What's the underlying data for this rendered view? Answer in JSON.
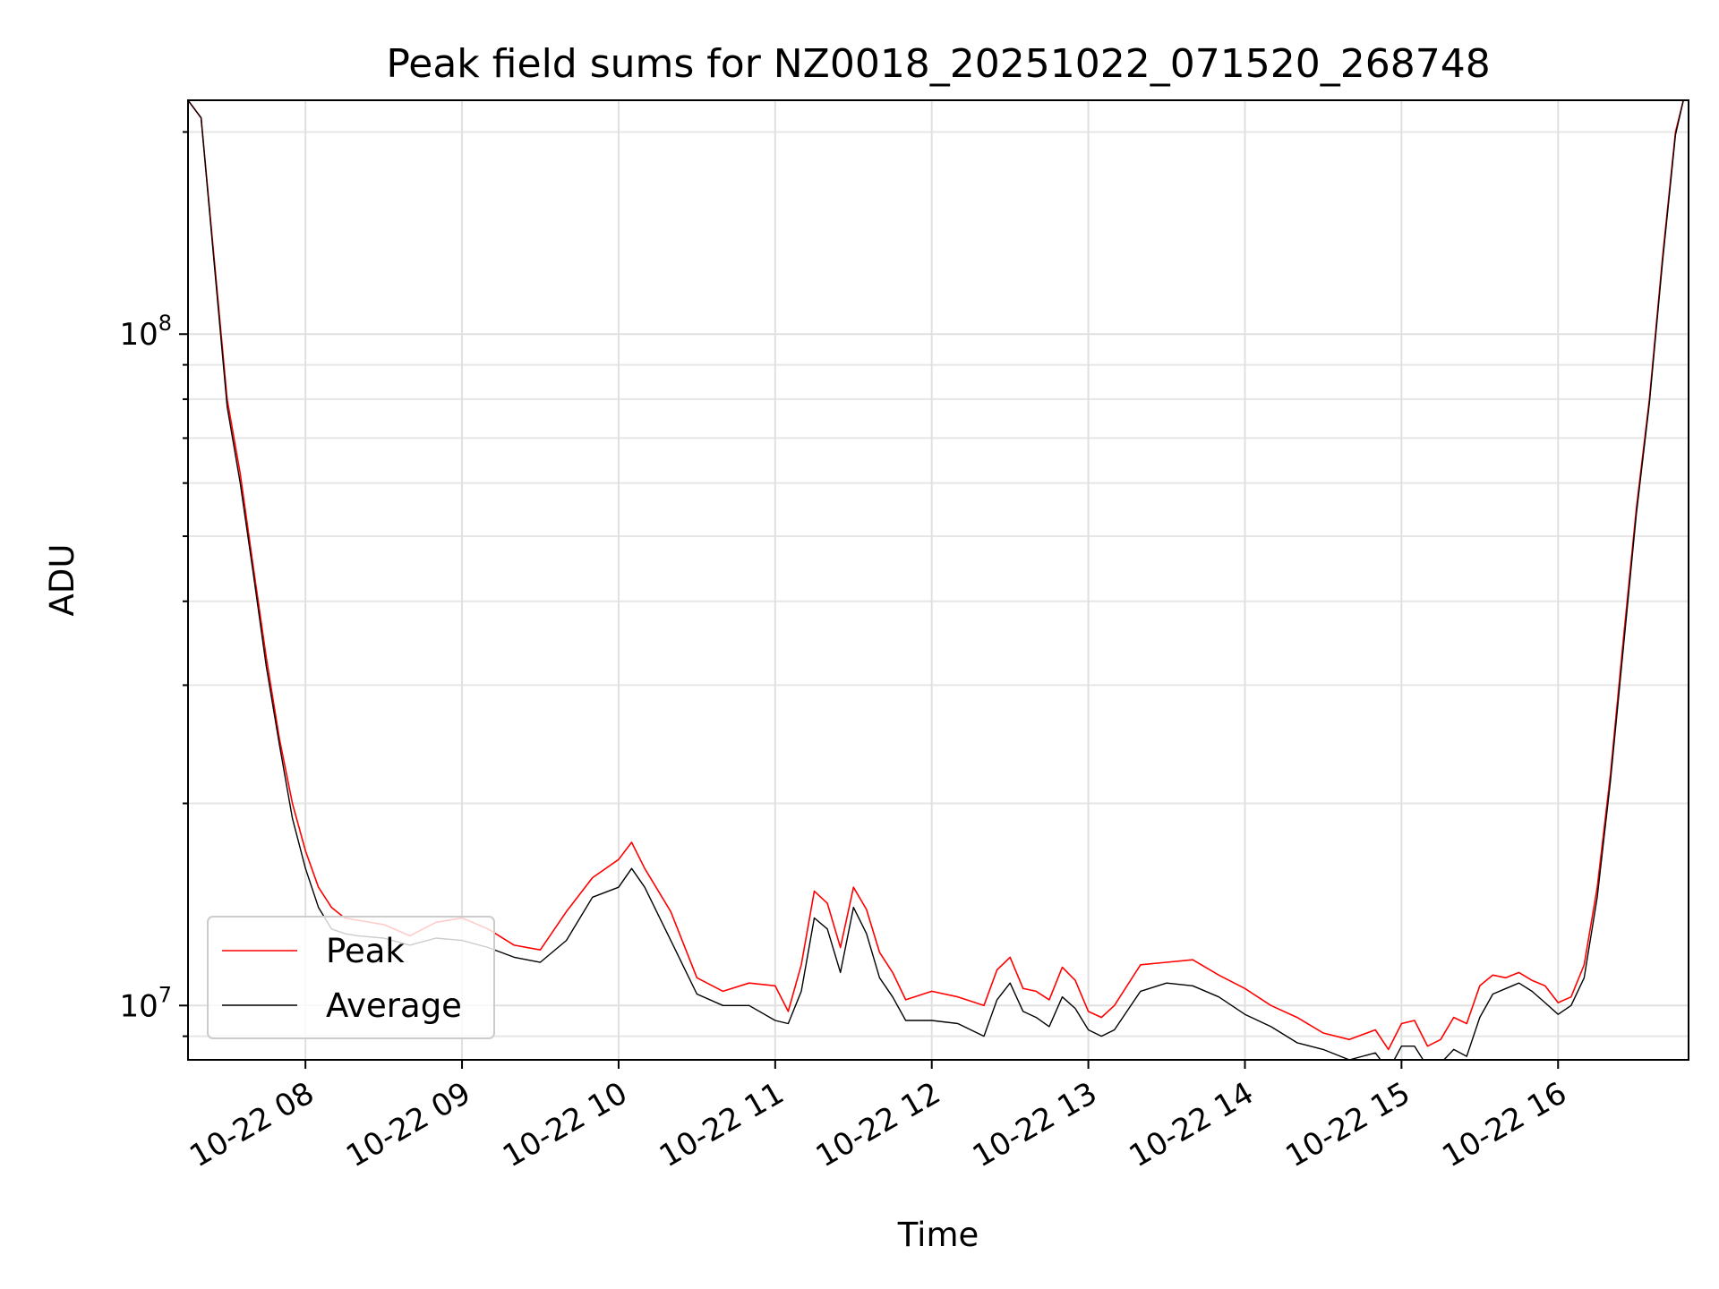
{
  "chart_data": {
    "type": "line",
    "title": "Peak field sums for NZ0018_20251022_071520_268748",
    "xlabel": "Time",
    "ylabel": "ADU",
    "yscale": "log",
    "ylim": [
      8300000,
      223000000
    ],
    "xlim": [
      "2025-10-22 07:15",
      "2025-10-22 16:50"
    ],
    "grid": true,
    "legend": {
      "location": "lower-left",
      "entries": [
        "Peak",
        "Average"
      ]
    },
    "x_ticks": [
      "10-22 08",
      "10-22 09",
      "10-22 10",
      "10-22 11",
      "10-22 12",
      "10-22 13",
      "10-22 14",
      "10-22 15",
      "10-22 16"
    ],
    "y_ticks": [
      {
        "value": 10000000,
        "base": "10",
        "exp": "7"
      },
      {
        "value": 100000000,
        "base": "10",
        "exp": "8"
      }
    ],
    "x": [
      "2025-10-22 07:15",
      "2025-10-22 07:20",
      "2025-10-22 07:25",
      "2025-10-22 07:30",
      "2025-10-22 07:35",
      "2025-10-22 07:40",
      "2025-10-22 07:45",
      "2025-10-22 07:50",
      "2025-10-22 07:55",
      "2025-10-22 08:00",
      "2025-10-22 08:05",
      "2025-10-22 08:10",
      "2025-10-22 08:15",
      "2025-10-22 08:20",
      "2025-10-22 08:30",
      "2025-10-22 08:40",
      "2025-10-22 08:50",
      "2025-10-22 09:00",
      "2025-10-22 09:10",
      "2025-10-22 09:20",
      "2025-10-22 09:30",
      "2025-10-22 09:40",
      "2025-10-22 09:50",
      "2025-10-22 10:00",
      "2025-10-22 10:05",
      "2025-10-22 10:10",
      "2025-10-22 10:20",
      "2025-10-22 10:30",
      "2025-10-22 10:40",
      "2025-10-22 10:50",
      "2025-10-22 11:00",
      "2025-10-22 11:05",
      "2025-10-22 11:10",
      "2025-10-22 11:15",
      "2025-10-22 11:20",
      "2025-10-22 11:25",
      "2025-10-22 11:30",
      "2025-10-22 11:35",
      "2025-10-22 11:40",
      "2025-10-22 11:45",
      "2025-10-22 11:50",
      "2025-10-22 12:00",
      "2025-10-22 12:10",
      "2025-10-22 12:20",
      "2025-10-22 12:25",
      "2025-10-22 12:30",
      "2025-10-22 12:35",
      "2025-10-22 12:40",
      "2025-10-22 12:45",
      "2025-10-22 12:50",
      "2025-10-22 12:55",
      "2025-10-22 13:00",
      "2025-10-22 13:05",
      "2025-10-22 13:10",
      "2025-10-22 13:20",
      "2025-10-22 13:30",
      "2025-10-22 13:40",
      "2025-10-22 13:50",
      "2025-10-22 14:00",
      "2025-10-22 14:10",
      "2025-10-22 14:20",
      "2025-10-22 14:30",
      "2025-10-22 14:40",
      "2025-10-22 14:50",
      "2025-10-22 14:55",
      "2025-10-22 15:00",
      "2025-10-22 15:05",
      "2025-10-22 15:10",
      "2025-10-22 15:15",
      "2025-10-22 15:20",
      "2025-10-22 15:25",
      "2025-10-22 15:30",
      "2025-10-22 15:35",
      "2025-10-22 15:40",
      "2025-10-22 15:45",
      "2025-10-22 15:50",
      "2025-10-22 15:55",
      "2025-10-22 16:00",
      "2025-10-22 16:05",
      "2025-10-22 16:10",
      "2025-10-22 16:15",
      "2025-10-22 16:20",
      "2025-10-22 16:25",
      "2025-10-22 16:30",
      "2025-10-22 16:35",
      "2025-10-22 16:40",
      "2025-10-22 16:45",
      "2025-10-22 16:48"
    ],
    "series": [
      {
        "name": "Peak",
        "color": "#ff0000",
        "values": [
          223000000,
          210000000,
          130000000,
          80000000,
          62000000,
          45000000,
          33000000,
          25000000,
          20000000,
          17000000,
          15000000,
          14000000,
          13500000,
          13400000,
          13200000,
          12700000,
          13300000,
          13500000,
          13000000,
          12300000,
          12100000,
          13800000,
          15500000,
          16500000,
          17500000,
          16000000,
          13800000,
          11000000,
          10500000,
          10800000,
          10700000,
          9800000,
          11500000,
          14800000,
          14200000,
          12200000,
          15000000,
          13900000,
          12000000,
          11200000,
          10200000,
          10500000,
          10300000,
          10000000,
          11300000,
          11800000,
          10600000,
          10500000,
          10200000,
          11400000,
          10900000,
          9800000,
          9600000,
          10000000,
          11500000,
          11600000,
          11700000,
          11100000,
          10600000,
          10000000,
          9600000,
          9100000,
          8900000,
          9200000,
          8600000,
          9400000,
          9500000,
          8700000,
          8900000,
          9600000,
          9400000,
          10700000,
          11100000,
          11000000,
          11200000,
          10900000,
          10700000,
          10100000,
          10300000,
          11500000,
          15000000,
          22000000,
          35000000,
          55000000,
          80000000,
          130000000,
          200000000,
          223000000
        ]
      },
      {
        "name": "Average",
        "color": "#000000",
        "values": [
          223000000,
          210000000,
          128000000,
          78000000,
          60000000,
          44000000,
          32000000,
          24500000,
          19000000,
          16000000,
          14000000,
          13000000,
          12800000,
          12700000,
          12600000,
          12300000,
          12600000,
          12500000,
          12200000,
          11800000,
          11600000,
          12500000,
          14500000,
          15000000,
          16000000,
          15000000,
          12500000,
          10400000,
          10000000,
          10000000,
          9500000,
          9400000,
          10500000,
          13500000,
          13000000,
          11200000,
          14000000,
          12800000,
          11000000,
          10300000,
          9500000,
          9500000,
          9400000,
          9000000,
          10200000,
          10800000,
          9800000,
          9600000,
          9300000,
          10300000,
          9900000,
          9200000,
          9000000,
          9200000,
          10500000,
          10800000,
          10700000,
          10300000,
          9700000,
          9300000,
          8800000,
          8600000,
          8300000,
          8500000,
          8000000,
          8700000,
          8700000,
          8100000,
          8200000,
          8600000,
          8400000,
          9600000,
          10400000,
          10600000,
          10800000,
          10500000,
          10100000,
          9700000,
          10000000,
          11000000,
          14500000,
          21500000,
          34000000,
          54000000,
          79000000,
          128000000,
          198000000,
          223000000
        ]
      }
    ]
  }
}
